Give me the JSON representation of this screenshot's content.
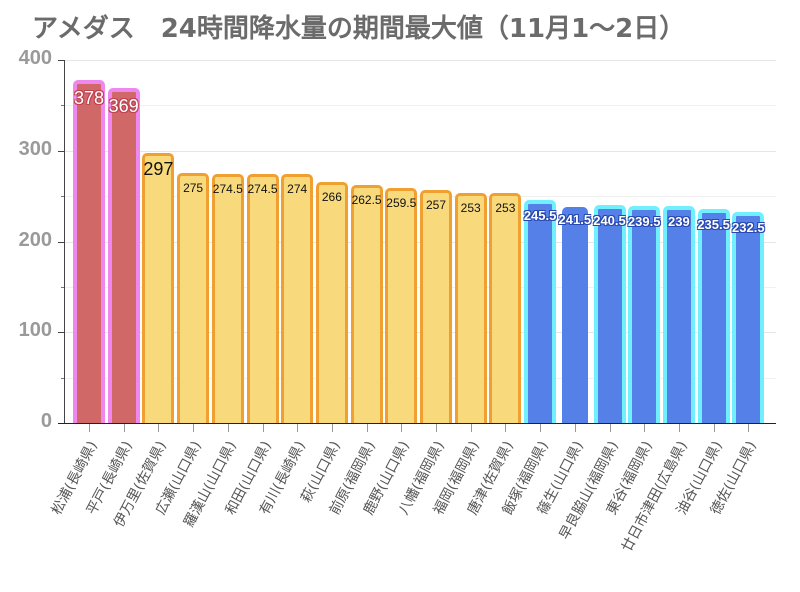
{
  "chart_data": {
    "type": "bar",
    "title": "アメダス　24時間降水量の期間最大値（11月1〜2日）",
    "xlabel": "",
    "ylabel": "",
    "ylim": [
      0,
      400
    ],
    "yticks": [
      "0",
      "100",
      "200",
      "300",
      "400"
    ],
    "minor_yticks": [
      50,
      150,
      250,
      350
    ],
    "grid": true,
    "legend": null,
    "categories": [
      "松浦(長崎県)",
      "平戸(長崎県)",
      "伊万里(佐賀県)",
      "広瀬(山口県)",
      "羅漢山(山口県)",
      "和田(山口県)",
      "有川(長崎県)",
      "萩(山口県)",
      "前原(福岡県)",
      "鹿野(山口県)",
      "八幡(福岡県)",
      "福岡(福岡県)",
      "唐津(佐賀県)",
      "飯塚(福岡県)",
      "篠生(山口県)",
      "早良脇山(福岡県)",
      "東谷(福岡県)",
      "廿日市津田(広島県)",
      "油谷(山口県)",
      "徳佐(山口県)"
    ],
    "values": [
      378,
      369,
      297,
      275,
      274.5,
      274.5,
      274,
      266,
      262.5,
      259.5,
      257,
      253,
      253,
      245.5,
      241.5,
      240.5,
      239.5,
      239,
      235.5,
      232.5
    ],
    "value_labels": [
      "378",
      "369",
      "297",
      "275",
      "274.5",
      "274.5",
      "274",
      "266",
      "262.5",
      "259.5",
      "257",
      "253",
      "253",
      "245.5",
      "241.5",
      "240.5",
      "239.5",
      "239",
      "235.5",
      "232.5"
    ],
    "bar_styles": [
      "red",
      "red",
      "yellow",
      "yellow",
      "yellow",
      "yellow",
      "yellow",
      "yellow",
      "yellow",
      "yellow",
      "yellow",
      "yellow",
      "yellow",
      "blue",
      "blue-noborder",
      "blue",
      "blue",
      "blue",
      "blue",
      "blue"
    ],
    "colors": {
      "red_fill": "#d06868",
      "red_border": "#ee88ee",
      "yellow_fill": "#f8da7c",
      "yellow_border": "#f0a030",
      "blue_fill": "#5480e8",
      "blue_border": "#70f0ff",
      "title": "#6b6b6b",
      "axis_label": "#9a9a9a"
    }
  }
}
